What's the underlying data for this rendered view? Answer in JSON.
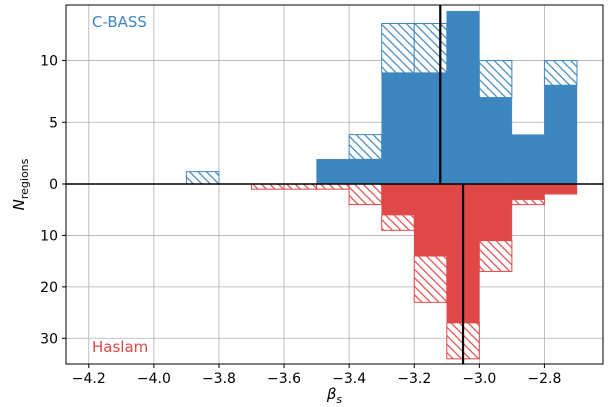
{
  "chart_data": {
    "type": "bar",
    "xlabel": "β",
    "xlabel_sub": "s",
    "ylabel": "N",
    "ylabel_sub": "regions",
    "xlim": [
      -4.27,
      -2.62
    ],
    "x_ticks": [
      -4.2,
      -4.0,
      -3.8,
      -3.6,
      -3.4,
      -3.2,
      -3.0,
      -2.8
    ],
    "x_tick_labels": [
      "−4.2",
      "−4.0",
      "−3.8",
      "−3.6",
      "−3.4",
      "−3.2",
      "−3.0",
      "−2.8"
    ],
    "grid": true,
    "bin_edges": [
      -4.2,
      -4.1,
      -4.0,
      -3.9,
      -3.8,
      -3.7,
      -3.6,
      -3.5,
      -3.4,
      -3.3,
      -3.2,
      -3.1,
      -3.0,
      -2.9,
      -2.8,
      -2.7
    ],
    "colors": {
      "cbass": "#3d87c0",
      "haslam": "#e04848"
    },
    "panels": [
      {
        "name": "C-BASS",
        "label": "C-BASS",
        "ylim": [
          0,
          14.5
        ],
        "y_ticks": [
          0,
          5,
          10
        ],
        "y_tick_labels": [
          "0",
          "5",
          "10"
        ],
        "solid": [
          0,
          0,
          0,
          0,
          0,
          0,
          0,
          2,
          2,
          9,
          9,
          14,
          7,
          4,
          8
        ],
        "hatched_total": [
          0,
          0,
          0,
          1,
          0,
          0,
          0,
          0,
          4,
          13,
          13,
          14,
          10,
          4,
          10
        ],
        "median": -3.12
      },
      {
        "name": "Haslam",
        "label": "Haslam",
        "ylim": [
          0,
          35
        ],
        "y_ticks": [
          10,
          20,
          30
        ],
        "y_tick_labels": [
          "10",
          "20",
          "30"
        ],
        "solid": [
          0,
          0,
          0,
          0,
          0,
          0,
          0,
          0,
          0,
          6,
          14,
          27,
          11,
          3,
          2
        ],
        "hatched_total": [
          0,
          0,
          0,
          0,
          0,
          1,
          1,
          1,
          4,
          9,
          23,
          34,
          17,
          4,
          2
        ],
        "median": -3.05
      }
    ]
  }
}
